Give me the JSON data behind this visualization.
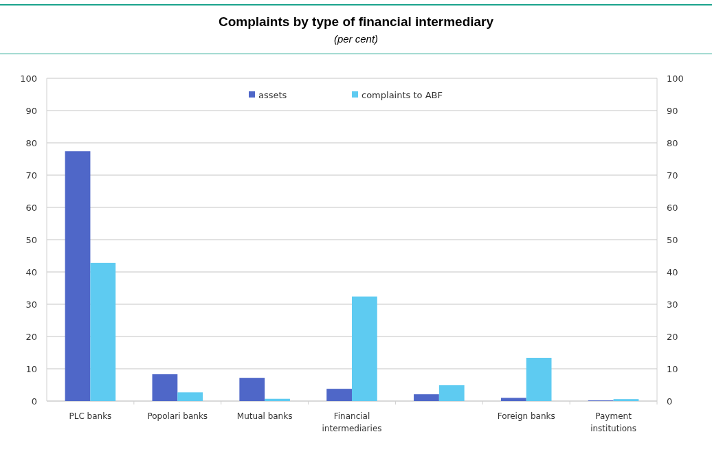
{
  "chart_data": {
    "type": "bar",
    "title": "Complaints by type of financial intermediary",
    "subtitle": "(per cent)",
    "categories": [
      "PLC banks",
      "Popolari banks",
      "Mutual banks",
      "Financial intermediaries",
      null,
      "Foreign banks",
      "Payment institutions"
    ],
    "series": [
      {
        "name": "assets",
        "color": "#4f67c8",
        "values": [
          77.4,
          8.3,
          7.2,
          3.8,
          2.1,
          1.0,
          0.2
        ]
      },
      {
        "name": "complaints to ABF",
        "color": "#5ecbf1",
        "values": [
          42.8,
          2.7,
          0.7,
          32.4,
          4.9,
          13.4,
          0.6
        ]
      }
    ],
    "ylim": [
      0,
      100
    ],
    "yticks": [
      0,
      10,
      20,
      30,
      40,
      50,
      60,
      70,
      80,
      90,
      100
    ],
    "y2lim": [
      0,
      100
    ],
    "y2ticks": [
      0,
      10,
      20,
      30,
      40,
      50,
      60,
      70,
      80,
      90,
      100
    ],
    "grid": "y",
    "legend": "top"
  }
}
